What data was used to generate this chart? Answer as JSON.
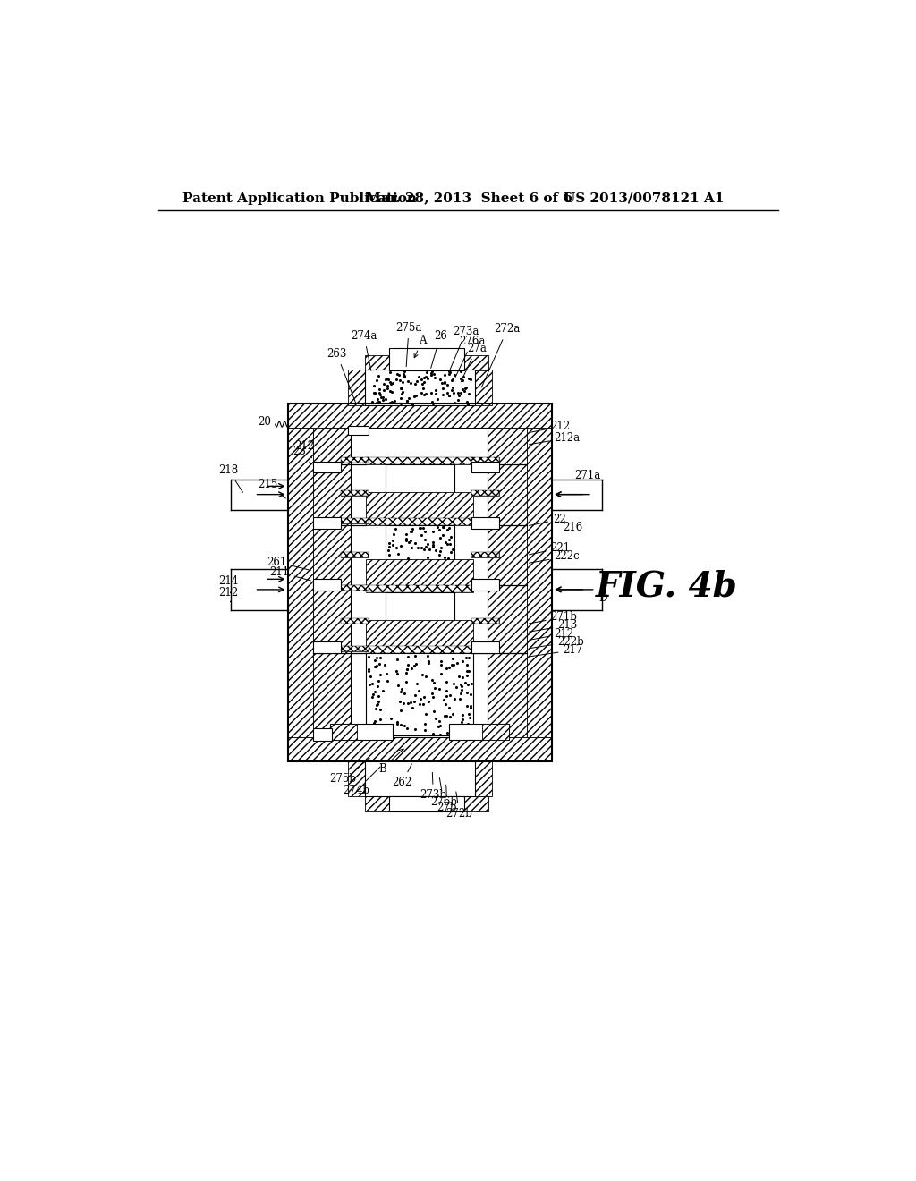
{
  "header_left": "Patent Application Publication",
  "header_mid": "Mar. 28, 2013  Sheet 6 of 6",
  "header_right": "US 2013/0078121 A1",
  "fig_label": "FIG. 4b",
  "bg_color": "#ffffff",
  "line_color": "#000000",
  "header_fontsize": 11,
  "label_fontsize": 8.5,
  "fig_label_fontsize": 28
}
